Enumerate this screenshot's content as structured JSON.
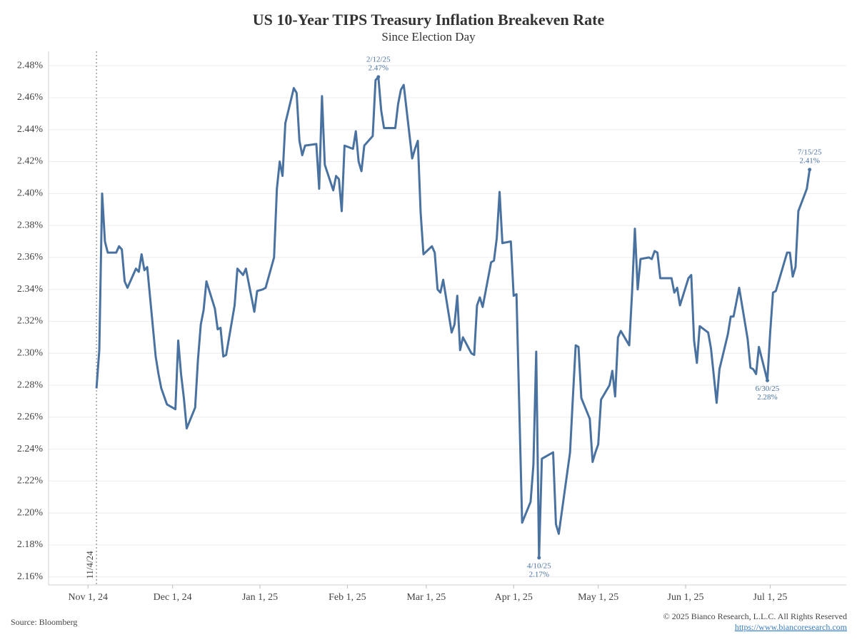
{
  "chart_data": {
    "type": "line",
    "title": "US 10-Year TIPS Treasury Inflation Breakeven Rate",
    "subtitle": "Since Election Day",
    "color": "#4a72a0",
    "x": [
      "2024-11-04",
      "2024-11-05",
      "2024-11-06",
      "2024-11-07",
      "2024-11-08",
      "2024-11-11",
      "2024-11-12",
      "2024-11-13",
      "2024-11-14",
      "2024-11-15",
      "2024-11-18",
      "2024-11-19",
      "2024-11-20",
      "2024-11-21",
      "2024-11-22",
      "2024-11-25",
      "2024-11-26",
      "2024-11-27",
      "2024-11-29",
      "2024-12-02",
      "2024-12-03",
      "2024-12-04",
      "2024-12-05",
      "2024-12-06",
      "2024-12-09",
      "2024-12-10",
      "2024-12-11",
      "2024-12-12",
      "2024-12-13",
      "2024-12-16",
      "2024-12-17",
      "2024-12-18",
      "2024-12-19",
      "2024-12-20",
      "2024-12-23",
      "2024-12-24",
      "2024-12-26",
      "2024-12-27",
      "2024-12-30",
      "2024-12-31",
      "2025-01-02",
      "2025-01-03",
      "2025-01-06",
      "2025-01-07",
      "2025-01-08",
      "2025-01-09",
      "2025-01-10",
      "2025-01-13",
      "2025-01-14",
      "2025-01-15",
      "2025-01-16",
      "2025-01-17",
      "2025-01-21",
      "2025-01-22",
      "2025-01-23",
      "2025-01-24",
      "2025-01-27",
      "2025-01-28",
      "2025-01-29",
      "2025-01-30",
      "2025-01-31",
      "2025-02-03",
      "2025-02-04",
      "2025-02-05",
      "2025-02-06",
      "2025-02-07",
      "2025-02-10",
      "2025-02-11",
      "2025-02-12",
      "2025-02-13",
      "2025-02-14",
      "2025-02-18",
      "2025-02-19",
      "2025-02-20",
      "2025-02-21",
      "2025-02-24",
      "2025-02-25",
      "2025-02-26",
      "2025-02-27",
      "2025-02-28",
      "2025-03-03",
      "2025-03-04",
      "2025-03-05",
      "2025-03-06",
      "2025-03-07",
      "2025-03-10",
      "2025-03-11",
      "2025-03-12",
      "2025-03-13",
      "2025-03-14",
      "2025-03-17",
      "2025-03-18",
      "2025-03-19",
      "2025-03-20",
      "2025-03-21",
      "2025-03-24",
      "2025-03-25",
      "2025-03-26",
      "2025-03-27",
      "2025-03-28",
      "2025-03-31",
      "2025-04-01",
      "2025-04-02",
      "2025-04-04",
      "2025-04-07",
      "2025-04-08",
      "2025-04-09",
      "2025-04-10",
      "2025-04-11",
      "2025-04-14",
      "2025-04-15",
      "2025-04-16",
      "2025-04-17",
      "2025-04-21",
      "2025-04-22",
      "2025-04-23",
      "2025-04-24",
      "2025-04-25",
      "2025-04-28",
      "2025-04-29",
      "2025-04-30",
      "2025-05-01",
      "2025-05-02",
      "2025-05-05",
      "2025-05-06",
      "2025-05-07",
      "2025-05-08",
      "2025-05-09",
      "2025-05-12",
      "2025-05-13",
      "2025-05-14",
      "2025-05-15",
      "2025-05-16",
      "2025-05-19",
      "2025-05-20",
      "2025-05-21",
      "2025-05-22",
      "2025-05-23",
      "2025-05-27",
      "2025-05-28",
      "2025-05-29",
      "2025-05-30",
      "2025-06-02",
      "2025-06-03",
      "2025-06-04",
      "2025-06-05",
      "2025-06-06",
      "2025-06-09",
      "2025-06-10",
      "2025-06-11",
      "2025-06-12",
      "2025-06-13",
      "2025-06-16",
      "2025-06-17",
      "2025-06-18",
      "2025-06-20",
      "2025-06-23",
      "2025-06-24",
      "2025-06-25",
      "2025-06-26",
      "2025-06-27",
      "2025-06-30",
      "2025-07-01",
      "2025-07-02",
      "2025-07-03",
      "2025-07-07",
      "2025-07-08",
      "2025-07-09",
      "2025-07-10",
      "2025-07-11",
      "2025-07-14",
      "2025-07-15"
    ],
    "values": [
      2.278,
      2.302,
      2.4,
      2.37,
      2.363,
      2.363,
      2.367,
      2.365,
      2.345,
      2.341,
      2.353,
      2.351,
      2.362,
      2.352,
      2.354,
      2.298,
      2.287,
      2.278,
      2.268,
      2.265,
      2.308,
      2.287,
      2.272,
      2.253,
      2.266,
      2.296,
      2.318,
      2.327,
      2.345,
      2.328,
      2.315,
      2.316,
      2.298,
      2.299,
      2.33,
      2.353,
      2.349,
      2.353,
      2.326,
      2.339,
      2.34,
      2.341,
      2.36,
      2.403,
      2.42,
      2.411,
      2.444,
      2.466,
      2.463,
      2.433,
      2.424,
      2.43,
      2.431,
      2.403,
      2.461,
      2.418,
      2.402,
      2.411,
      2.409,
      2.389,
      2.43,
      2.428,
      2.439,
      2.42,
      2.414,
      2.43,
      2.436,
      2.471,
      2.473,
      2.452,
      2.441,
      2.441,
      2.456,
      2.465,
      2.468,
      2.422,
      2.428,
      2.433,
      2.388,
      2.362,
      2.367,
      2.363,
      2.34,
      2.338,
      2.346,
      2.313,
      2.318,
      2.336,
      2.302,
      2.31,
      2.3,
      2.299,
      2.33,
      2.335,
      2.329,
      2.357,
      2.358,
      2.372,
      2.401,
      2.369,
      2.37,
      2.336,
      2.337,
      2.194,
      2.207,
      2.23,
      2.301,
      2.172,
      2.234,
      2.237,
      2.238,
      2.193,
      2.187,
      2.238,
      2.272,
      2.305,
      2.304,
      2.272,
      2.259,
      2.232,
      2.238,
      2.243,
      2.271,
      2.28,
      2.289,
      2.273,
      2.31,
      2.314,
      2.305,
      2.338,
      2.378,
      2.34,
      2.359,
      2.36,
      2.359,
      2.364,
      2.363,
      2.347,
      2.347,
      2.338,
      2.341,
      2.33,
      2.347,
      2.349,
      2.308,
      2.294,
      2.317,
      2.313,
      2.303,
      2.286,
      2.269,
      2.29,
      2.312,
      2.323,
      2.323,
      2.341,
      2.309,
      2.291,
      2.29,
      2.287,
      2.304,
      2.283,
      2.313,
      2.338,
      2.339,
      2.363,
      2.363,
      2.348,
      2.354,
      2.389,
      2.403,
      2.415
    ],
    "xlim": [
      "2024-10-18",
      "2025-07-28"
    ],
    "xticks": [
      {
        "value": "2024-11-01",
        "label": "Nov 1, 24"
      },
      {
        "value": "2024-12-01",
        "label": "Dec 1, 24"
      },
      {
        "value": "2025-01-01",
        "label": "Jan 1, 25"
      },
      {
        "value": "2025-02-01",
        "label": "Feb 1, 25"
      },
      {
        "value": "2025-03-01",
        "label": "Mar 1, 25"
      },
      {
        "value": "2025-04-01",
        "label": "Apr 1, 25"
      },
      {
        "value": "2025-05-01",
        "label": "May 1, 25"
      },
      {
        "value": "2025-06-01",
        "label": "Jun 1, 25"
      },
      {
        "value": "2025-07-01",
        "label": "Jul 1, 25"
      }
    ],
    "ylim": [
      2.155,
      2.489
    ],
    "yticks": [
      {
        "value": 2.16,
        "label": "2.16%"
      },
      {
        "value": 2.18,
        "label": "2.18%"
      },
      {
        "value": 2.2,
        "label": "2.20%"
      },
      {
        "value": 2.22,
        "label": "2.22%"
      },
      {
        "value": 2.24,
        "label": "2.24%"
      },
      {
        "value": 2.26,
        "label": "2.26%"
      },
      {
        "value": 2.28,
        "label": "2.28%"
      },
      {
        "value": 2.3,
        "label": "2.30%"
      },
      {
        "value": 2.32,
        "label": "2.32%"
      },
      {
        "value": 2.34,
        "label": "2.34%"
      },
      {
        "value": 2.36,
        "label": "2.36%"
      },
      {
        "value": 2.38,
        "label": "2.38%"
      },
      {
        "value": 2.4,
        "label": "2.40%"
      },
      {
        "value": 2.42,
        "label": "2.42%"
      },
      {
        "value": 2.44,
        "label": "2.44%"
      },
      {
        "value": 2.46,
        "label": "2.46%"
      },
      {
        "value": 2.48,
        "label": "2.48%"
      }
    ],
    "grid": true,
    "reference_line": {
      "x": "2024-11-04",
      "label": "11/4/24"
    },
    "annotations": [
      {
        "x": "2025-02-12",
        "label": "2/12/25",
        "value_label": "2.47%"
      },
      {
        "x": "2025-04-10",
        "label": "4/10/25",
        "value_label": "2.17%"
      },
      {
        "x": "2025-06-30",
        "label": "6/30/25",
        "value_label": "2.28%"
      },
      {
        "x": "2025-07-15",
        "label": "7/15/25",
        "value_label": "2.41%"
      }
    ],
    "source": "Source: Bloomberg",
    "copyright": "© 2025 Bianco Research, L.L.C. All Rights Reserved",
    "url": "https://www.biancoresearch.com"
  }
}
